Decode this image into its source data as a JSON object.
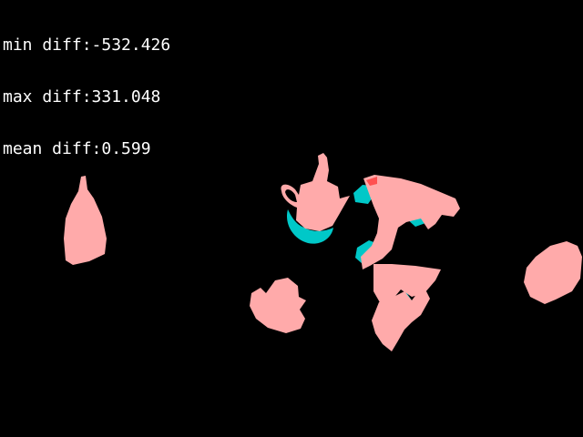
{
  "stats": {
    "min_diff": "min diff:-532.426",
    "max_diff": "max diff:331.048",
    "mean_diff": "mean diff:0.599"
  },
  "colors": {
    "background": "#000000",
    "text": "#ffffff",
    "positive_region": "#ffaaaa",
    "negative_region": "#00c8c8",
    "accent_red": "#ff5050"
  }
}
